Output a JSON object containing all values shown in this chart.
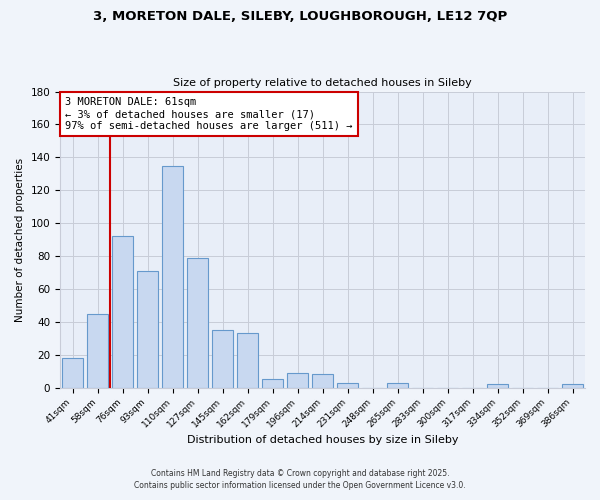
{
  "title_line1": "3, MORETON DALE, SILEBY, LOUGHBOROUGH, LE12 7QP",
  "title_line2": "Size of property relative to detached houses in Sileby",
  "xlabel": "Distribution of detached houses by size in Sileby",
  "ylabel": "Number of detached properties",
  "bar_labels": [
    "41sqm",
    "58sqm",
    "76sqm",
    "93sqm",
    "110sqm",
    "127sqm",
    "145sqm",
    "162sqm",
    "179sqm",
    "196sqm",
    "214sqm",
    "231sqm",
    "248sqm",
    "265sqm",
    "283sqm",
    "300sqm",
    "317sqm",
    "334sqm",
    "352sqm",
    "369sqm",
    "386sqm"
  ],
  "bar_values": [
    18,
    45,
    92,
    71,
    135,
    79,
    35,
    33,
    5,
    9,
    8,
    3,
    0,
    3,
    0,
    0,
    0,
    2,
    0,
    0,
    2
  ],
  "bar_color": "#c8d8f0",
  "bar_edge_color": "#6699cc",
  "vline_x": 1.5,
  "vline_color": "#cc0000",
  "annotation_text": "3 MORETON DALE: 61sqm\n← 3% of detached houses are smaller (17)\n97% of semi-detached houses are larger (511) →",
  "annotation_box_color": "#ffffff",
  "annotation_box_edge": "#cc0000",
  "ylim": [
    0,
    180
  ],
  "yticks": [
    0,
    20,
    40,
    60,
    80,
    100,
    120,
    140,
    160,
    180
  ],
  "footnote1": "Contains HM Land Registry data © Crown copyright and database right 2025.",
  "footnote2": "Contains public sector information licensed under the Open Government Licence v3.0.",
  "background_color": "#f0f4fa",
  "plot_bg_color": "#e8eef8",
  "grid_color": "#c8ccd8"
}
